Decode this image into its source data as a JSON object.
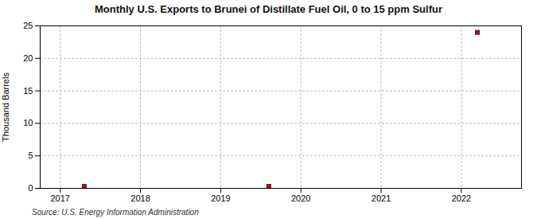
{
  "chart_data": {
    "type": "scatter",
    "title": "Monthly U.S. Exports to Brunei of Distillate Fuel Oil, 0 to 15 ppm Sulfur",
    "ylabel": "Thousand Barrels",
    "annotations": [
      "Source: U.S. Energy Information Administration"
    ],
    "x": [
      2017.3,
      2019.6,
      2022.2
    ],
    "values": [
      0.3,
      0.3,
      24.0
    ],
    "color": "#8b1a1a",
    "marker": "square",
    "xlim": [
      2016.75,
      2022.75
    ],
    "ylim": [
      0,
      25
    ],
    "xticks": [
      2017,
      2018,
      2019,
      2020,
      2021,
      2022
    ],
    "yticks": [
      0,
      5,
      10,
      15,
      20,
      25
    ],
    "grid": true
  }
}
